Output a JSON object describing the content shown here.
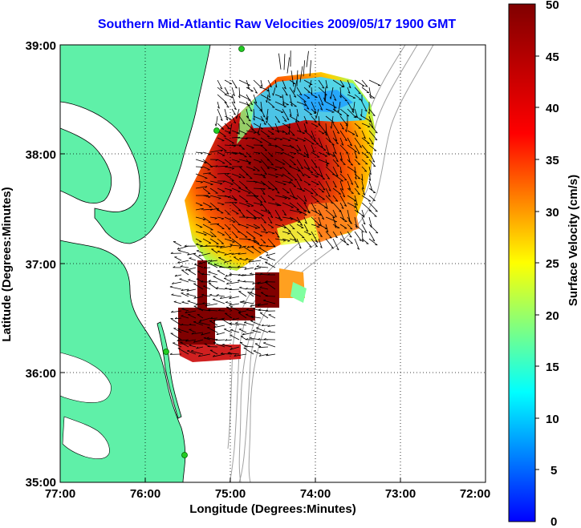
{
  "title": "Southern Mid-Atlantic Raw Velocities 2009/05/17 1900 GMT",
  "xaxis": {
    "label": "Longitude (Degrees:Minutes)",
    "ticks": [
      "77:00",
      "76:00",
      "75:00",
      "74:00",
      "73:00",
      "72:00"
    ]
  },
  "yaxis": {
    "label": "Latitude (Degrees:Minutes)",
    "ticks": [
      "39:00",
      "38:00",
      "37:00",
      "36:00",
      "35:00"
    ]
  },
  "colorbar": {
    "label": "Surface Velocity (cm/s)",
    "ticks": [
      "50",
      "45",
      "40",
      "35",
      "30",
      "25",
      "20",
      "15",
      "10",
      "5",
      "0"
    ],
    "range": [
      0,
      50
    ],
    "colormap": "jet"
  },
  "colors": {
    "land": "#5ff0a8",
    "coastline": "#000000",
    "bathymetry": "#a0a0a0",
    "title": "#0000ff",
    "station": "#22cc22"
  },
  "map_extent": {
    "lon": [
      -77,
      -72
    ],
    "lat": [
      35,
      39
    ]
  },
  "icons": {
    "station-marker": "green-circle",
    "vector": "black-arrow"
  }
}
